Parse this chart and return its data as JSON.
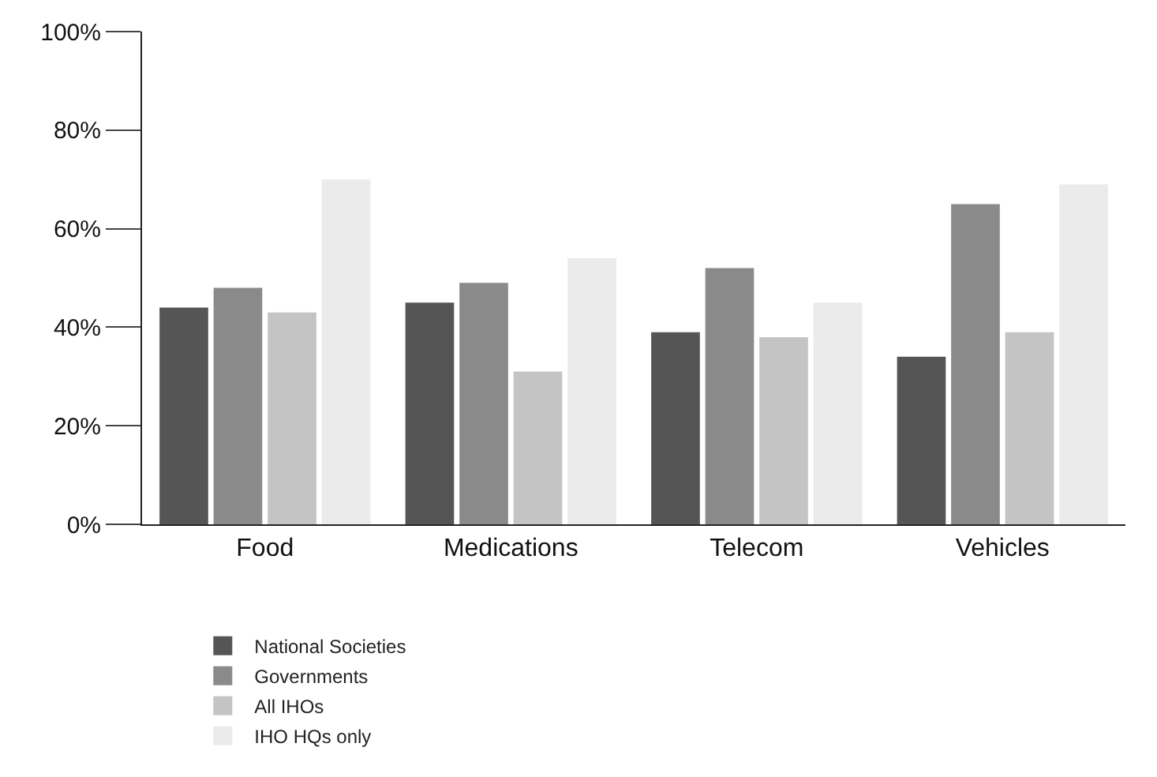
{
  "chart_data": {
    "type": "bar",
    "categories": [
      "Food",
      "Medications",
      "Telecom",
      "Vehicles"
    ],
    "series": [
      {
        "name": "National Societies",
        "color": "#555555",
        "values": [
          44,
          45,
          39,
          34
        ]
      },
      {
        "name": "Governments",
        "color": "#8a8a8a",
        "values": [
          48,
          49,
          52,
          65
        ]
      },
      {
        "name": "All IHOs",
        "color": "#c4c4c4",
        "values": [
          43,
          31,
          38,
          39
        ]
      },
      {
        "name": "IHO HQs only",
        "color": "#ebebeb",
        "values": [
          70,
          54,
          45,
          69
        ]
      }
    ],
    "ylim": [
      0,
      100
    ],
    "yticks": [
      {
        "value": 0,
        "label": "0%"
      },
      {
        "value": 20,
        "label": "20%"
      },
      {
        "value": 40,
        "label": "40%"
      },
      {
        "value": 60,
        "label": "60%"
      },
      {
        "value": 80,
        "label": "80%"
      },
      {
        "value": 100,
        "label": "100%"
      }
    ],
    "grid": false,
    "legend": "bottom"
  }
}
